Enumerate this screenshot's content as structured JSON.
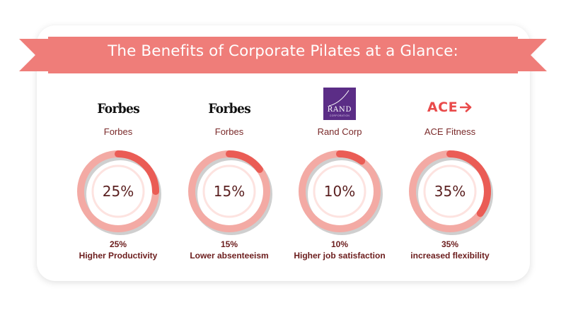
{
  "header": {
    "title": "The Benefits of Corporate Pilates at a Glance:"
  },
  "colors": {
    "ribbon": "#ef7d79",
    "ribbon_tail": "#ef7d79",
    "ring_track": "#f3aaa4",
    "ring_progress": "#ea5c55",
    "ring_inner": "#fde3e0",
    "ring_shadow": "#cfcfcf"
  },
  "stats": [
    {
      "logo": "Forbes",
      "logo_type": "forbes",
      "source": "Forbes",
      "percent": 25,
      "percent_label": "25%",
      "caption_value": "25%",
      "caption_text": "Higher Productivity"
    },
    {
      "logo": "Forbes",
      "logo_type": "forbes",
      "source": "Forbes",
      "percent": 15,
      "percent_label": "15%",
      "caption_value": "15%",
      "caption_text": "Lower absenteeism"
    },
    {
      "logo": "RAND",
      "logo_sub": "CORPORATION",
      "logo_type": "rand",
      "source": "Rand Corp",
      "percent": 10,
      "percent_label": "10%",
      "caption_value": "10%",
      "caption_text": "Higher job satisfaction"
    },
    {
      "logo": "ACE",
      "logo_type": "ace",
      "source": "ACE Fitness",
      "percent": 35,
      "percent_label": "35%",
      "caption_value": "35%",
      "caption_text": "increased flexibility"
    }
  ]
}
